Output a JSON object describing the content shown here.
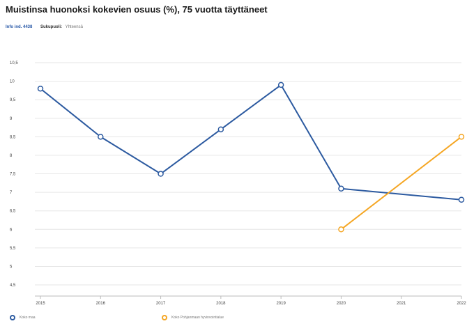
{
  "header": {
    "title": "Muistinsa huonoksi kokevien osuus (%), 75 vuotta täyttäneet",
    "info_link": "Info ind. 4438",
    "sex_label": "Sukupuoli:",
    "sex_value": "Yhteensä"
  },
  "colors": {
    "series_1": "#2c5aa0",
    "series_2": "#f5a623",
    "grid": "#e6e6e6",
    "axis_text": "#444444"
  },
  "chart_data": {
    "type": "line",
    "title": "Muistinsa huonoksi kokevien osuus (%), 75 vuotta täyttäneet",
    "xlabel": "",
    "ylabel": "",
    "categories": [
      "2015",
      "2016",
      "2017",
      "2018",
      "2019",
      "2020",
      "2021",
      "2022"
    ],
    "y_ticks": [
      "10,5",
      "10",
      "9,5",
      "9",
      "8,5",
      "8",
      "7,5",
      "7",
      "6,5",
      "6",
      "5,5",
      "5",
      "4,5"
    ],
    "ylim": [
      4.2,
      10.5
    ],
    "grid": true,
    "legend_position": "bottom-left",
    "series": [
      {
        "name": "Koko maa",
        "color": "#2c5aa0",
        "x": [
          2015,
          2016,
          2017,
          2018,
          2019,
          2020,
          2022
        ],
        "values": [
          9.8,
          8.5,
          7.5,
          8.7,
          9.9,
          7.1,
          6.8
        ]
      },
      {
        "name": "Koko Pohjanmaan hyvinvointialue",
        "color": "#f5a623",
        "x": [
          2020,
          2022
        ],
        "values": [
          6.0,
          8.5
        ]
      }
    ]
  }
}
